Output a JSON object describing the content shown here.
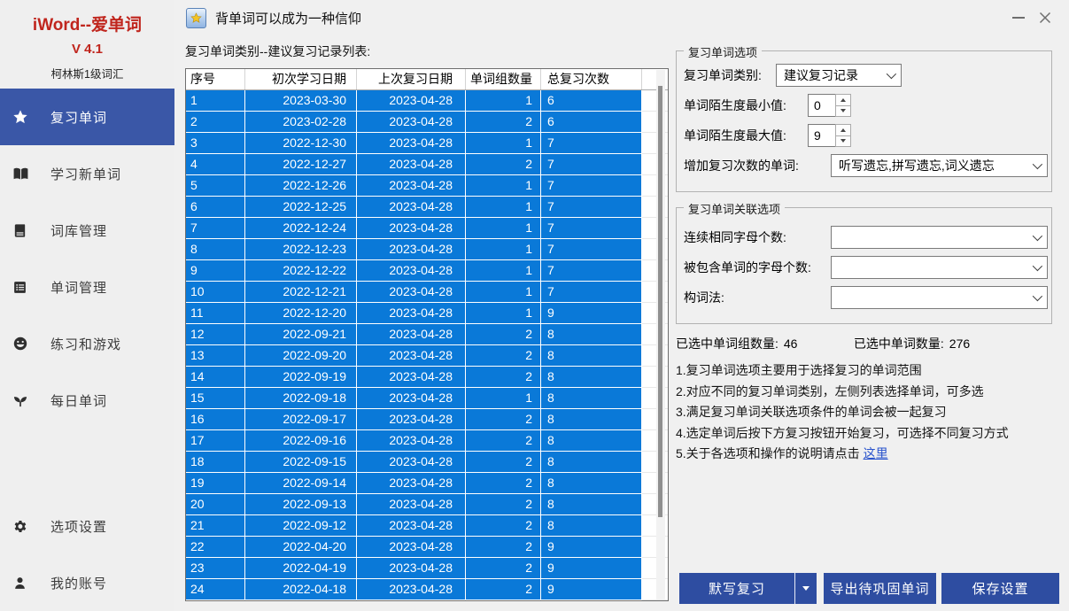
{
  "window": {
    "brand_line1": "iWord--爱单词",
    "brand_line2": "V 4.1",
    "brand_line3": "柯林斯1级词汇",
    "title": "背单词可以成为一种信仰",
    "icon": "book-star-icon",
    "controls": {
      "minimize": "minimize-icon",
      "close": "close-icon"
    }
  },
  "colors": {
    "brand_red": "#c0251d",
    "accent_blue": "#3a57a7",
    "selection_blue": "#0a79d8",
    "button_blue": "#2e4da1",
    "link_blue": "#2953cc"
  },
  "sidebar": {
    "items": [
      {
        "label": "复习单词",
        "icon": "star",
        "active": true,
        "bottom_group": false
      },
      {
        "label": "学习新单词",
        "icon": "open-book",
        "active": false,
        "bottom_group": false
      },
      {
        "label": "词库管理",
        "icon": "book",
        "active": false,
        "bottom_group": false
      },
      {
        "label": "单词管理",
        "icon": "list",
        "active": false,
        "bottom_group": false
      },
      {
        "label": "练习和游戏",
        "icon": "smiley",
        "active": false,
        "bottom_group": false
      },
      {
        "label": "每日单词",
        "icon": "sprout",
        "active": false,
        "bottom_group": false
      },
      {
        "label": "选项设置",
        "icon": "gear",
        "active": false,
        "bottom_group": true
      },
      {
        "label": "我的账号",
        "icon": "person",
        "active": false,
        "bottom_group": true
      }
    ]
  },
  "main": {
    "list_label": "复习单词类别--建议复习记录列表:",
    "table": {
      "columns": [
        "序号",
        "初次学习日期",
        "上次复习日期",
        "单词组数量",
        "总复习次数"
      ],
      "rows": [
        [
          "1",
          "2023-03-30",
          "2023-04-28",
          "1",
          "6"
        ],
        [
          "2",
          "2023-02-28",
          "2023-04-28",
          "2",
          "6"
        ],
        [
          "3",
          "2022-12-30",
          "2023-04-28",
          "1",
          "7"
        ],
        [
          "4",
          "2022-12-27",
          "2023-04-28",
          "2",
          "7"
        ],
        [
          "5",
          "2022-12-26",
          "2023-04-28",
          "1",
          "7"
        ],
        [
          "6",
          "2022-12-25",
          "2023-04-28",
          "1",
          "7"
        ],
        [
          "7",
          "2022-12-24",
          "2023-04-28",
          "1",
          "7"
        ],
        [
          "8",
          "2022-12-23",
          "2023-04-28",
          "1",
          "7"
        ],
        [
          "9",
          "2022-12-22",
          "2023-04-28",
          "1",
          "7"
        ],
        [
          "10",
          "2022-12-21",
          "2023-04-28",
          "1",
          "7"
        ],
        [
          "11",
          "2022-12-20",
          "2023-04-28",
          "1",
          "9"
        ],
        [
          "12",
          "2022-09-21",
          "2023-04-28",
          "2",
          "8"
        ],
        [
          "13",
          "2022-09-20",
          "2023-04-28",
          "2",
          "8"
        ],
        [
          "14",
          "2022-09-19",
          "2023-04-28",
          "2",
          "8"
        ],
        [
          "15",
          "2022-09-18",
          "2023-04-28",
          "1",
          "8"
        ],
        [
          "16",
          "2022-09-17",
          "2023-04-28",
          "2",
          "8"
        ],
        [
          "17",
          "2022-09-16",
          "2023-04-28",
          "2",
          "8"
        ],
        [
          "18",
          "2022-09-15",
          "2023-04-28",
          "2",
          "8"
        ],
        [
          "19",
          "2022-09-14",
          "2023-04-28",
          "2",
          "8"
        ],
        [
          "20",
          "2022-09-13",
          "2023-04-28",
          "2",
          "8"
        ],
        [
          "21",
          "2022-09-12",
          "2023-04-28",
          "2",
          "8"
        ],
        [
          "22",
          "2022-04-20",
          "2023-04-28",
          "2",
          "9"
        ],
        [
          "23",
          "2022-04-19",
          "2023-04-28",
          "2",
          "9"
        ],
        [
          "24",
          "2022-04-18",
          "2023-04-28",
          "2",
          "9"
        ]
      ]
    }
  },
  "panel": {
    "group_review_options": {
      "title": "复习单词选项",
      "category_label": "复习单词类别:",
      "category_value": "建议复习记录",
      "min_label": "单词陌生度最小值:",
      "min_value": "0",
      "max_label": "单词陌生度最大值:",
      "max_value": "9",
      "increase_label": "增加复习次数的单词:",
      "increase_value": "听写遗忘,拼写遗忘,词义遗忘"
    },
    "group_related_options": {
      "title": "复习单词关联选项",
      "rows": [
        {
          "label": "连续相同字母个数:",
          "value": ""
        },
        {
          "label": "被包含单词的字母个数:",
          "value": ""
        },
        {
          "label": "构词法:",
          "value": ""
        }
      ]
    },
    "status": {
      "groups_label": "已选中单词组数量:",
      "groups_value": "46",
      "words_label": "已选中单词数量:",
      "words_value": "276"
    },
    "instructions": [
      "1.复习单词选项主要用于选择复习的单词范围",
      "2.对应不同的复习单词类别，左侧列表选择单词，可多选",
      "3.满足复习单词关联选项条件的单词会被一起复习",
      "4.选定单词后按下方复习按钮开始复习，可选择不同复习方式"
    ],
    "instruction_link_line": {
      "prefix": "5.关于各选项和操作的说明请点击 ",
      "link": "这里"
    },
    "buttons": {
      "review": "默写复习",
      "export": "导出待巩固单词",
      "save": "保存设置"
    }
  }
}
